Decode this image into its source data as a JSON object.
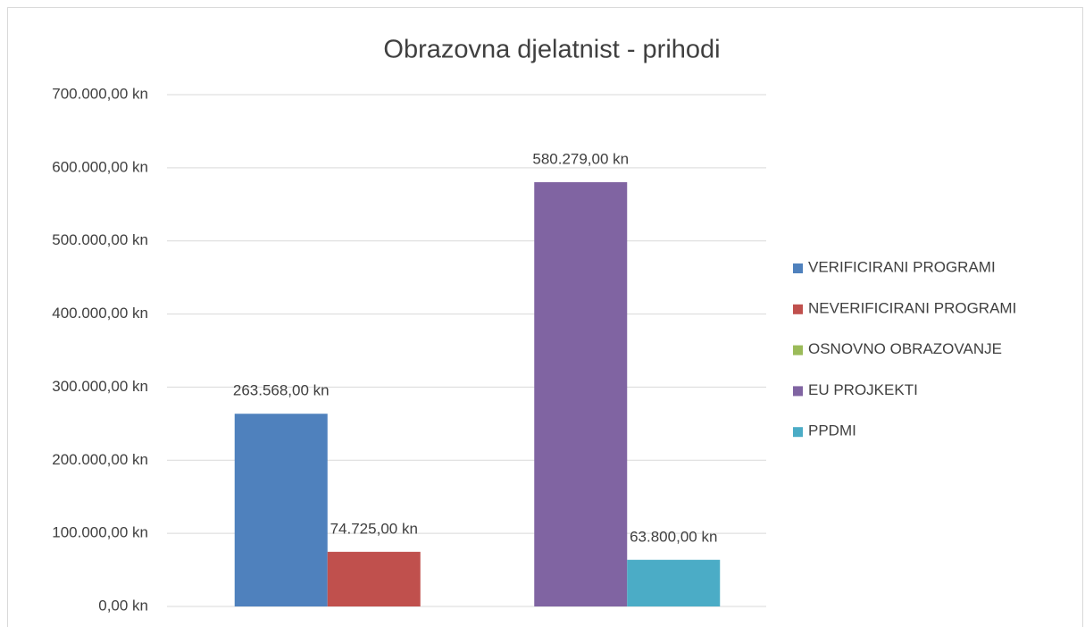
{
  "chart_data": {
    "type": "bar",
    "title": "Obrazovna djelatnist - prihodi",
    "categories": [
      null,
      null
    ],
    "series": [
      {
        "name": "VERIFICIRANI PROGRAMI",
        "color": "#4f81bd",
        "values": [
          263568,
          null
        ],
        "value_labels": [
          "263.568,00 kn",
          null
        ]
      },
      {
        "name": "NEVERIFICIRANI PROGRAMI",
        "color": "#c0504d",
        "values": [
          74725,
          null
        ],
        "value_labels": [
          "74.725,00 kn",
          null
        ]
      },
      {
        "name": "OSNOVNO OBRAZOVANJE",
        "color": "#9bbb59",
        "values": [
          null,
          null
        ],
        "value_labels": [
          null,
          null
        ]
      },
      {
        "name": "EU PROJKEKTI",
        "color": "#8064a2",
        "values": [
          null,
          580279
        ],
        "value_labels": [
          null,
          "580.279,00 kn"
        ]
      },
      {
        "name": "PPDMI",
        "color": "#4bacc6",
        "values": [
          null,
          63800
        ],
        "value_labels": [
          null,
          "63.800,00 kn"
        ]
      }
    ],
    "ylim": [
      0,
      700000
    ],
    "yticks": [
      {
        "value": 0,
        "label": "0,00 kn"
      },
      {
        "value": 100000,
        "label": "100.000,00 kn"
      },
      {
        "value": 200000,
        "label": "200.000,00 kn"
      },
      {
        "value": 300000,
        "label": "300.000,00 kn"
      },
      {
        "value": 400000,
        "label": "400.000,00 kn"
      },
      {
        "value": 500000,
        "label": "500.000,00 kn"
      },
      {
        "value": 600000,
        "label": "600.000,00 kn"
      },
      {
        "value": 700000,
        "label": "700.000,00 kn"
      }
    ],
    "grid": true,
    "legend": "right"
  }
}
